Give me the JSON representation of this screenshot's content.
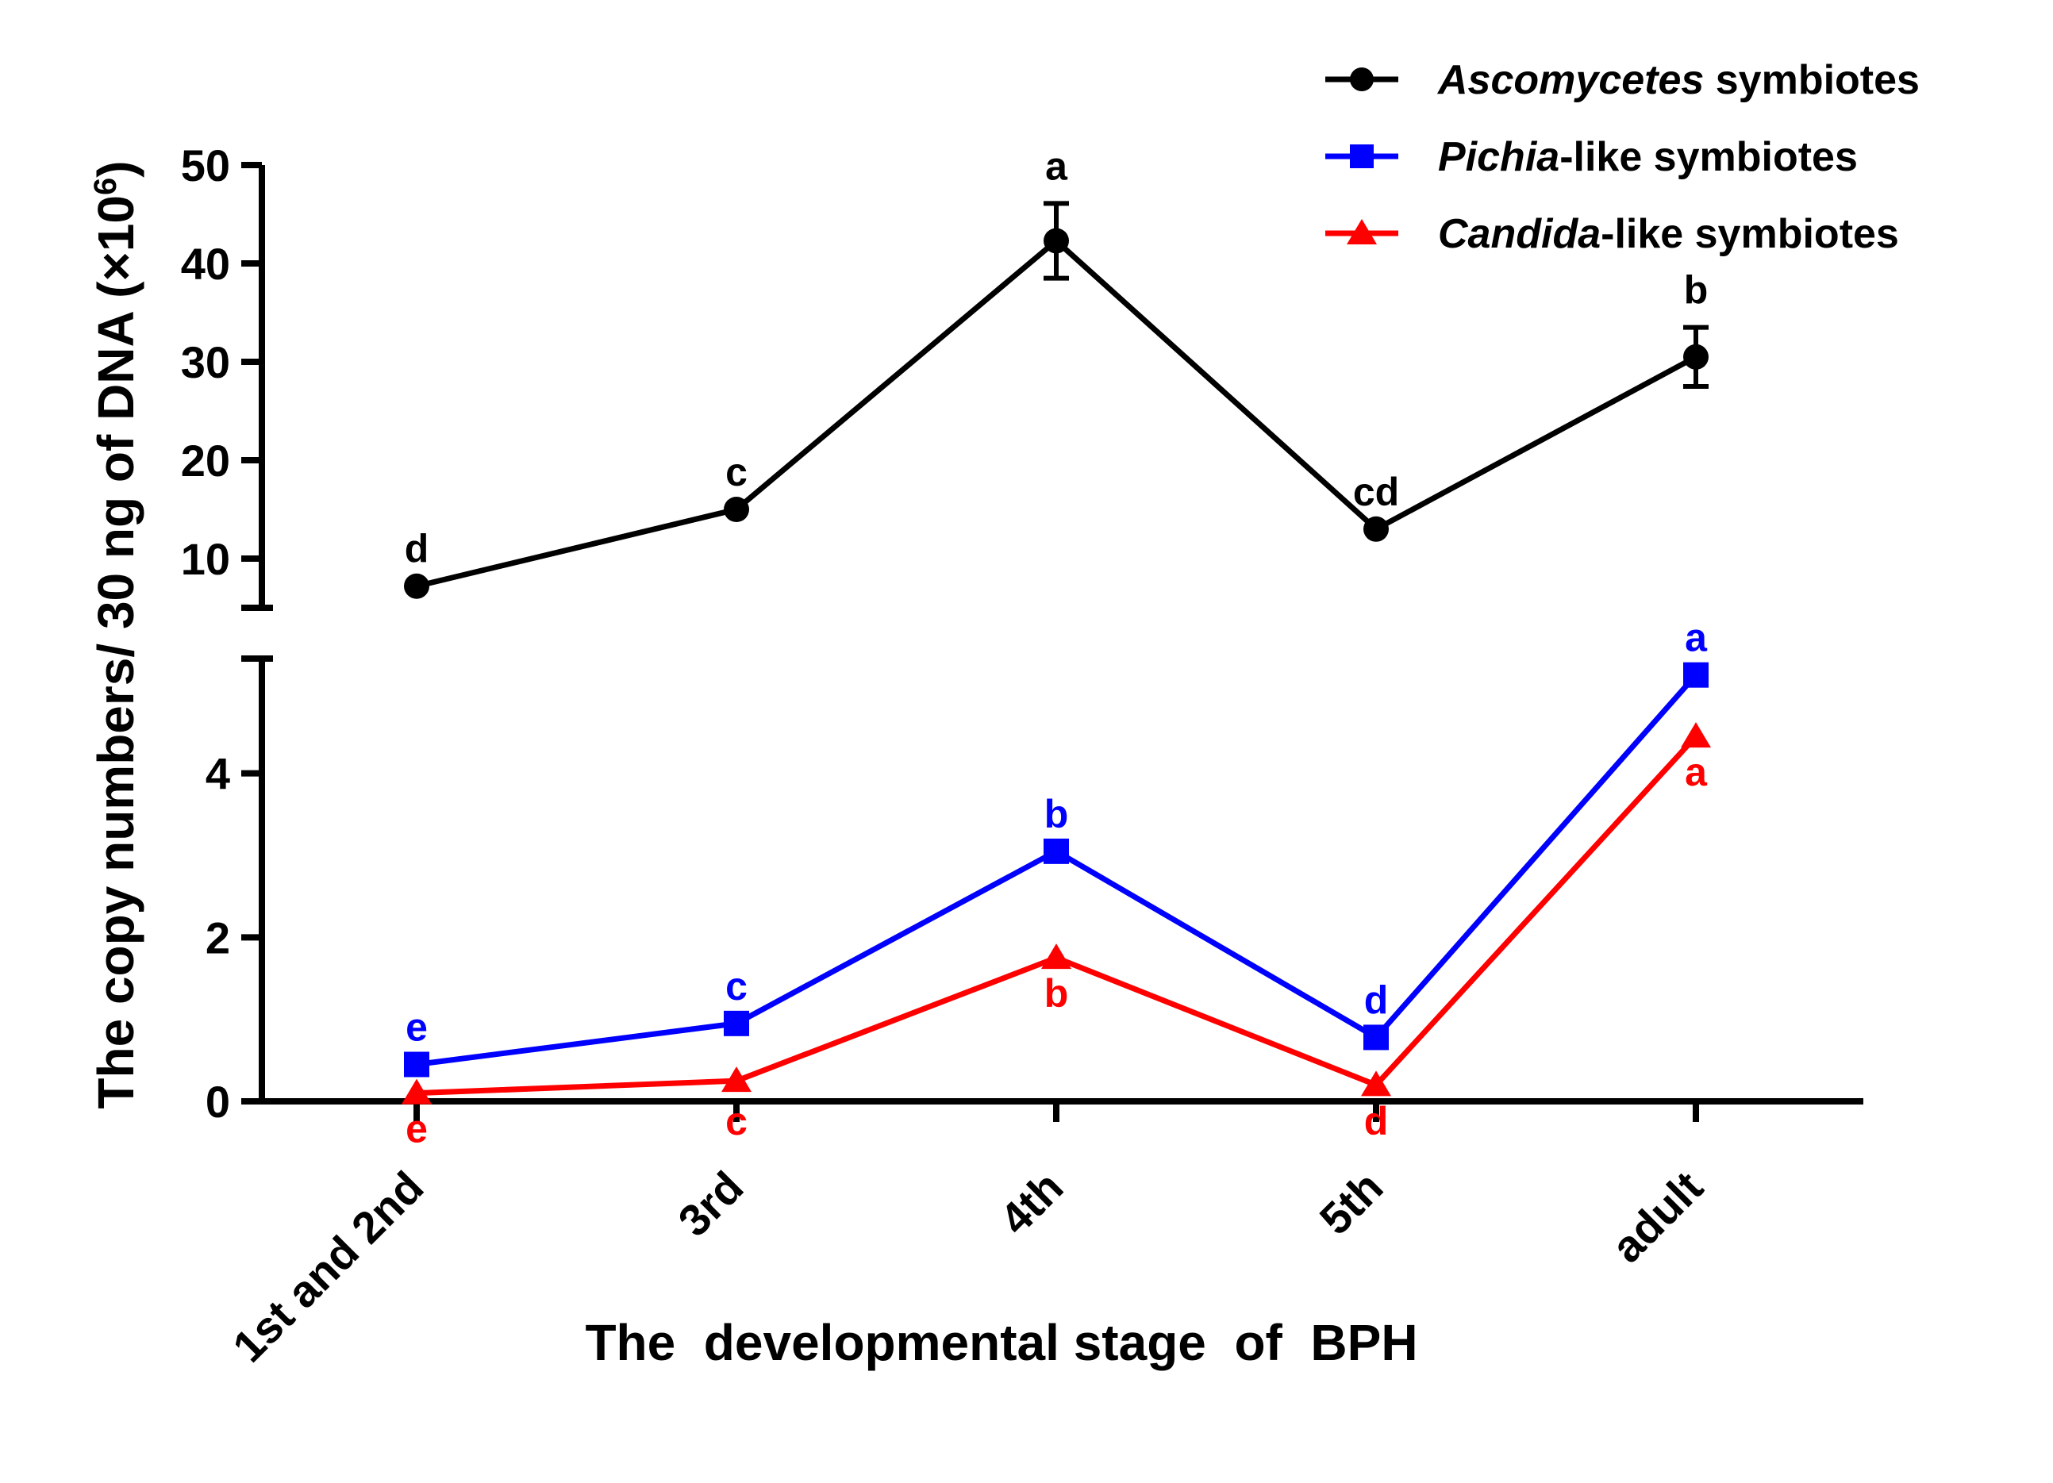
{
  "chart_data": {
    "type": "line",
    "xlabel": "The  developmental stage  of  BPH",
    "ylabel_main": "The copy numbers/ 30 ng of DNA (×10",
    "ylabel_exp": "6",
    "ylabel_close": ")",
    "categories": [
      "1st and 2nd",
      "3rd",
      "4th",
      "5th",
      "adult"
    ],
    "axis": {
      "upper": {
        "range": [
          5,
          50
        ],
        "ticks": [
          10,
          20,
          30,
          40,
          50
        ],
        "tick_labels": [
          "10",
          "20",
          "30",
          "40",
          "50"
        ]
      },
      "lower": {
        "range": [
          0,
          5.4
        ],
        "ticks": [
          0,
          2,
          4
        ],
        "tick_labels": [
          "0",
          "2",
          "4"
        ]
      }
    },
    "series": [
      {
        "name_italic": "Ascomycetes",
        "name_rest": " symbiotes",
        "color": "#000000",
        "marker": "circle",
        "segment": "upper",
        "values": [
          7.2,
          15.0,
          42.3,
          13.0,
          30.5
        ],
        "errors": [
          0.4,
          0.4,
          3.8,
          0.4,
          3.0
        ],
        "letters": [
          "d",
          "c",
          "a",
          "cd",
          "b"
        ],
        "letter_position": "above"
      },
      {
        "name_italic": "Pichia",
        "name_rest": "-like symbiotes",
        "color": "#0000ff",
        "marker": "square",
        "segment": "lower",
        "values": [
          0.45,
          0.95,
          3.05,
          0.78,
          5.2
        ],
        "errors": [
          0,
          0,
          0,
          0,
          0
        ],
        "letters": [
          "e",
          "c",
          "b",
          "d",
          "a"
        ],
        "letter_position": "above"
      },
      {
        "name_italic": "Candida",
        "name_rest": "-like symbiotes",
        "color": "#ff0000",
        "marker": "triangle",
        "segment": "lower",
        "values": [
          0.1,
          0.25,
          1.75,
          0.2,
          4.45
        ],
        "errors": [
          0,
          0,
          0,
          0,
          0
        ],
        "letters": [
          "e",
          "c",
          "b",
          "d",
          "a"
        ],
        "letter_position": "below"
      }
    ],
    "legend": {
      "position": "top-right"
    }
  }
}
